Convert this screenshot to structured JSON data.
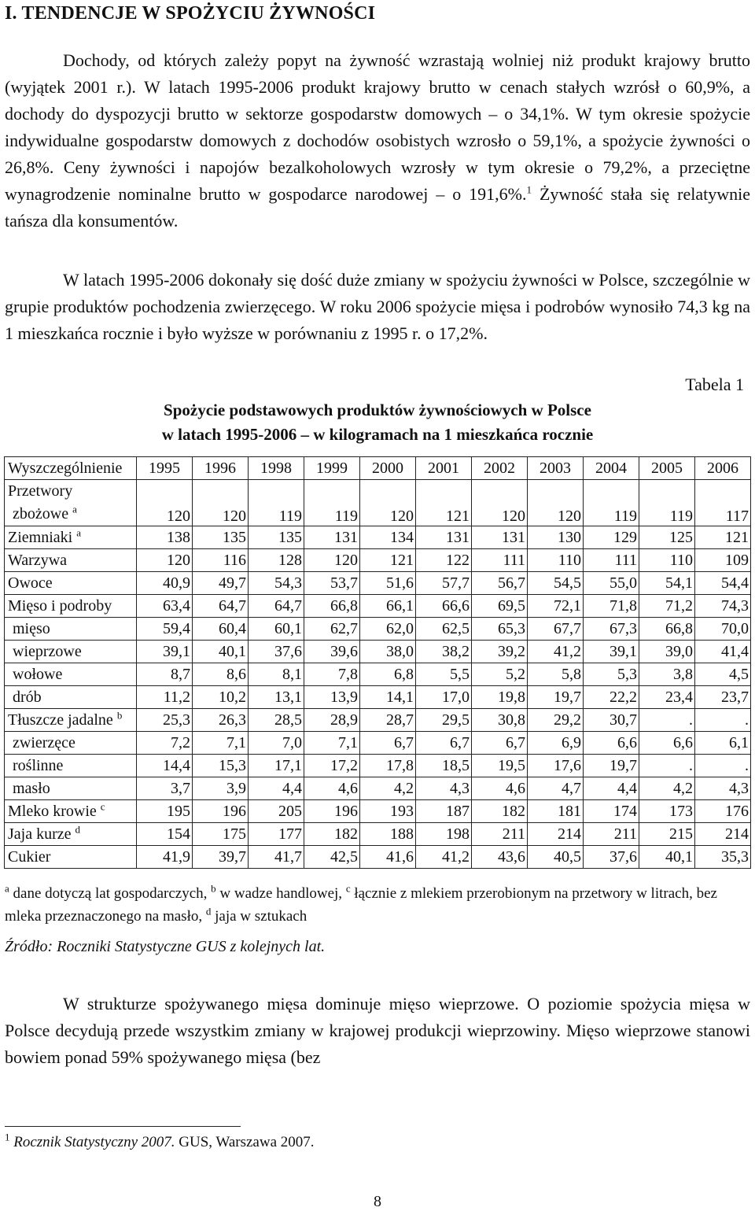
{
  "heading": "I. TENDENCJE W SPOŻYCIU ŻYWNOŚCI",
  "para1": {
    "text": "Dochody, od których zależy popyt na żywność wzrastają wolniej niż produkt krajowy brutto (wyjątek 2001 r.). W latach 1995-2006 produkt krajowy brutto w cenach stałych wzrósł o 60,9%, a dochody do dyspozycji brutto w sektorze gospodarstw domowych – o 34,1%. W tym okresie spożycie indywidualne gospodarstw domowych z dochodów osobistych wzrosło o 59,1%, a spożycie żywności o 26,8%. Ceny żywności i napojów bezalkoholowych wzrosły w tym okresie o 79,2%, a przeciętne wynagrodzenie nominalne brutto w gospodarce narodowej – o 191,6%.",
    "footnote_ref": "1",
    "tail": " Żywność stała się relatywnie tańsza dla konsumentów."
  },
  "para2": "W latach 1995-2006 dokonały się dość duże zmiany w spożyciu żywności w Polsce, szczególnie w grupie produktów pochodzenia zwierzęcego. W roku 2006 spożycie mięsa i podrobów wynosiło 74,3 kg na 1 mieszkańca rocznie i było wyższe w porównaniu z 1995 r. o 17,2%.",
  "table_label": "Tabela 1",
  "table_title_line1": "Spożycie podstawowych produktów żywnościowych w Polsce",
  "table_title_line2": "w latach 1995-2006 – w kilogramach na 1 mieszkańca rocznie",
  "table": {
    "header_first": "Wyszczególnienie",
    "years": [
      "1995",
      "1996",
      "1998",
      "1999",
      "2000",
      "2001",
      "2002",
      "2003",
      "2004",
      "2005",
      "2006"
    ],
    "rows": [
      {
        "label": "Przetwory",
        "label2": "zbożowe",
        "sup": "a",
        "indent": false,
        "values": [
          "120",
          "120",
          "119",
          "119",
          "120",
          "121",
          "120",
          "120",
          "119",
          "119",
          "117"
        ]
      },
      {
        "label": "Ziemniaki",
        "sup": "a",
        "indent": false,
        "values": [
          "138",
          "135",
          "135",
          "131",
          "134",
          "131",
          "131",
          "130",
          "129",
          "125",
          "121"
        ]
      },
      {
        "label": "Warzywa",
        "sup": "",
        "indent": false,
        "values": [
          "120",
          "116",
          "128",
          "120",
          "121",
          "122",
          "111",
          "110",
          "111",
          "110",
          "109"
        ]
      },
      {
        "label": "Owoce",
        "sup": "",
        "indent": false,
        "values": [
          "40,9",
          "49,7",
          "54,3",
          "53,7",
          "51,6",
          "57,7",
          "56,7",
          "54,5",
          "55,0",
          "54,1",
          "54,4"
        ]
      },
      {
        "label": "Mięso i podroby",
        "sup": "",
        "indent": false,
        "values": [
          "63,4",
          "64,7",
          "64,7",
          "66,8",
          "66,1",
          "66,6",
          "69,5",
          "72,1",
          "71,8",
          "71,2",
          "74,3"
        ]
      },
      {
        "label": "mięso",
        "sup": "",
        "indent": true,
        "values": [
          "59,4",
          "60,4",
          "60,1",
          "62,7",
          "62,0",
          "62,5",
          "65,3",
          "67,7",
          "67,3",
          "66,8",
          "70,0"
        ]
      },
      {
        "label": "wieprzowe",
        "sup": "",
        "indent": true,
        "values": [
          "39,1",
          "40,1",
          "37,6",
          "39,6",
          "38,0",
          "38,2",
          "39,2",
          "41,2",
          "39,1",
          "39,0",
          "41,4"
        ]
      },
      {
        "label": "wołowe",
        "sup": "",
        "indent": true,
        "values": [
          "8,7",
          "8,6",
          "8,1",
          "7,8",
          "6,8",
          "5,5",
          "5,2",
          "5,8",
          "5,3",
          "3,8",
          "4,5"
        ]
      },
      {
        "label": "drób",
        "sup": "",
        "indent": true,
        "values": [
          "11,2",
          "10,2",
          "13,1",
          "13,9",
          "14,1",
          "17,0",
          "19,8",
          "19,7",
          "22,2",
          "23,4",
          "23,7"
        ]
      },
      {
        "label": "Tłuszcze jadalne",
        "sup": "b",
        "indent": false,
        "values": [
          "25,3",
          "26,3",
          "28,5",
          "28,9",
          "28,7",
          "29,5",
          "30,8",
          "29,2",
          "30,7",
          ".",
          "."
        ]
      },
      {
        "label": "zwierzęce",
        "sup": "",
        "indent": true,
        "values": [
          "7,2",
          "7,1",
          "7,0",
          "7,1",
          "6,7",
          "6,7",
          "6,7",
          "6,9",
          "6,6",
          "6,6",
          "6,1"
        ]
      },
      {
        "label": "roślinne",
        "sup": "",
        "indent": true,
        "values": [
          "14,4",
          "15,3",
          "17,1",
          "17,2",
          "17,8",
          "18,5",
          "19,5",
          "17,6",
          "19,7",
          ".",
          "."
        ]
      },
      {
        "label": "masło",
        "sup": "",
        "indent": true,
        "values": [
          "3,7",
          "3,9",
          "4,4",
          "4,6",
          "4,2",
          "4,3",
          "4,6",
          "4,7",
          "4,4",
          "4,2",
          "4,3"
        ]
      },
      {
        "label": "Mleko krowie",
        "sup": "c",
        "indent": false,
        "values": [
          "195",
          "196",
          "205",
          "196",
          "193",
          "187",
          "182",
          "181",
          "174",
          "173",
          "176"
        ]
      },
      {
        "label": "Jaja kurze",
        "sup": "d",
        "indent": false,
        "values": [
          "154",
          "175",
          "177",
          "182",
          "188",
          "198",
          "211",
          "214",
          "211",
          "215",
          "214"
        ]
      },
      {
        "label": "Cukier",
        "sup": "",
        "indent": false,
        "values": [
          "41,9",
          "39,7",
          "41,7",
          "42,5",
          "41,6",
          "41,2",
          "43,6",
          "40,5",
          "37,6",
          "40,1",
          "35,3"
        ]
      }
    ]
  },
  "notes": {
    "a_mark": "a",
    "a_text": " dane dotyczą lat gospodarczych, ",
    "b_mark": "b",
    "b_text": " w wadze handlowej, ",
    "c_mark": "c",
    "c_text": " łącznie z mlekiem przerobionym na przetwory w litrach, bez mleka przeznaczonego na masło, ",
    "d_mark": "d",
    "d_text": " jaja w sztukach"
  },
  "source": "Źródło: Roczniki Statystyczne GUS z kolejnych lat.",
  "para3": "W strukturze spożywanego mięsa dominuje mięso wieprzowe. O poziomie spożycia mięsa w Polsce decydują przede wszystkim zmiany w krajowej produkcji wieprzowiny. Mięso wieprzowe stanowi bowiem ponad 59% spożywanego mięsa (bez",
  "footnote": {
    "mark": "1",
    "italic": "Rocznik Statystyczny 2007.",
    "rest": " GUS, Warszawa 2007."
  },
  "page_number": "8"
}
